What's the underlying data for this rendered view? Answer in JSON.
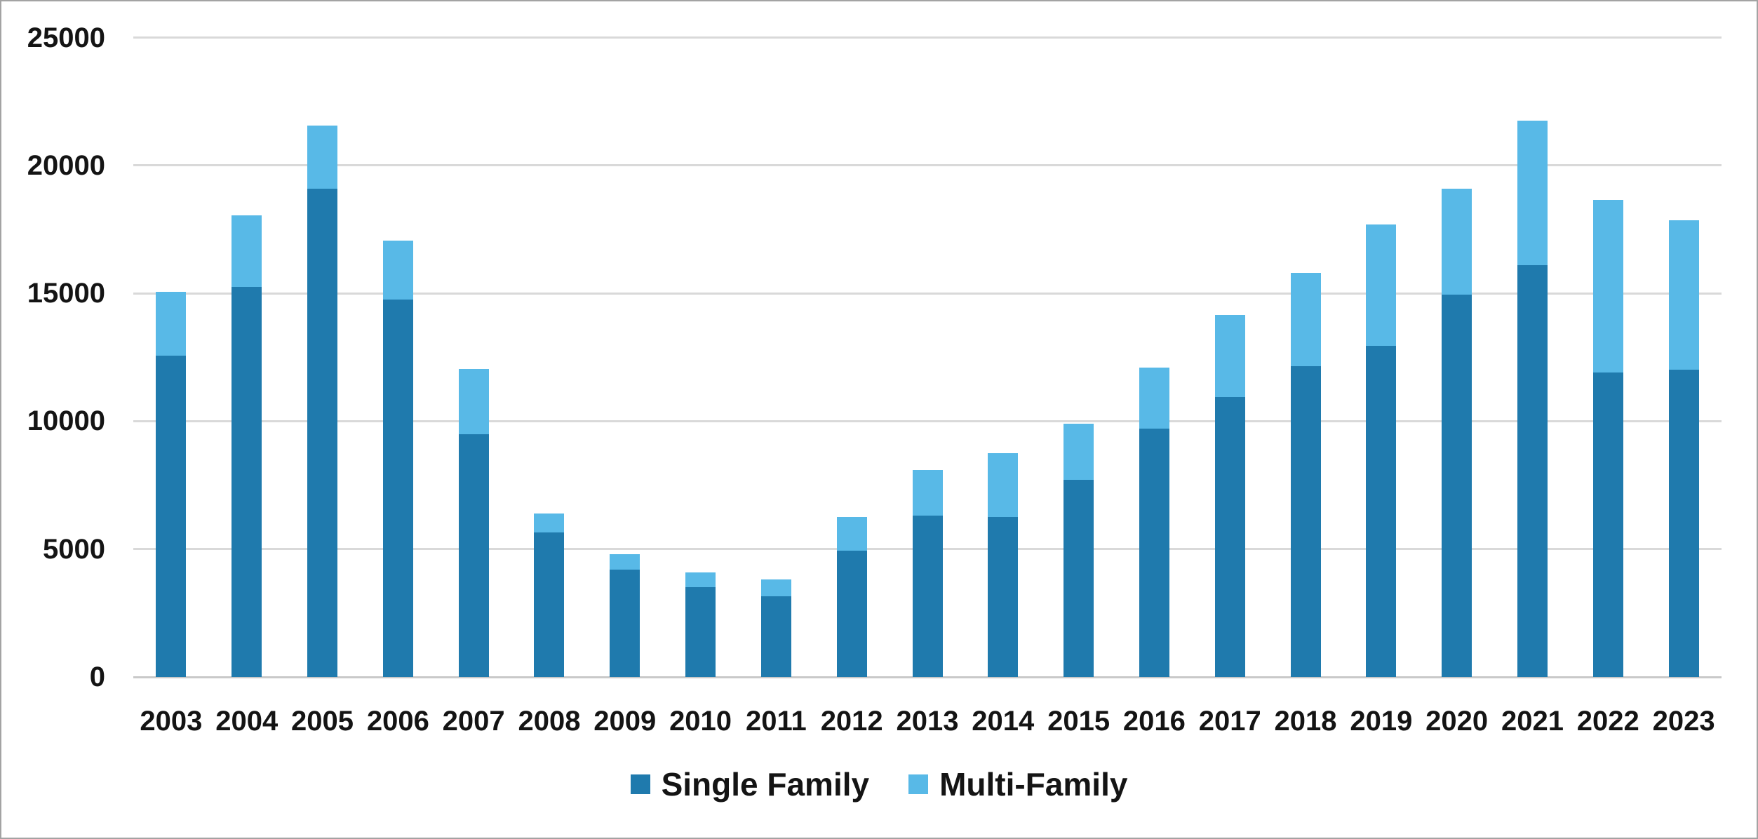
{
  "chart_data": {
    "type": "bar",
    "stacked": true,
    "title": "",
    "xlabel": "",
    "ylabel": "",
    "categories": [
      "2003",
      "2004",
      "2005",
      "2006",
      "2007",
      "2008",
      "2009",
      "2010",
      "2011",
      "2012",
      "2013",
      "2014",
      "2015",
      "2016",
      "2017",
      "2018",
      "2019",
      "2020",
      "2021",
      "2022",
      "2023"
    ],
    "series": [
      {
        "name": "Single Family",
        "color": "#1F7AAD",
        "values": [
          12550,
          15250,
          19100,
          14750,
          9500,
          5650,
          4200,
          3500,
          3150,
          4950,
          6300,
          6250,
          7700,
          9700,
          10950,
          12150,
          12950,
          14950,
          16100,
          11900,
          12000
        ]
      },
      {
        "name": "Multi-Family",
        "color": "#58B9E7",
        "values": [
          2500,
          2800,
          2450,
          2300,
          2550,
          750,
          600,
          600,
          650,
          1300,
          1800,
          2500,
          2200,
          2400,
          3200,
          3650,
          4750,
          4150,
          5650,
          6750,
          5850
        ]
      }
    ],
    "totals": [
      15050,
      18050,
      21550,
      17050,
      12050,
      6400,
      4800,
      4100,
      3800,
      6250,
      8100,
      8750,
      9900,
      12100,
      14150,
      15800,
      17700,
      19100,
      21750,
      18650,
      17850
    ],
    "ylim": [
      0,
      25000
    ],
    "y_ticks": [
      "0",
      "5000",
      "10000",
      "15000",
      "20000",
      "25000"
    ],
    "grid": true,
    "legend_position": "bottom",
    "colors": {
      "gridline": "#D9D9D9",
      "axis_line": "#C9C9C9",
      "label": "#141414",
      "background": "#FFFFFF",
      "border": "#A3A3A3"
    }
  }
}
